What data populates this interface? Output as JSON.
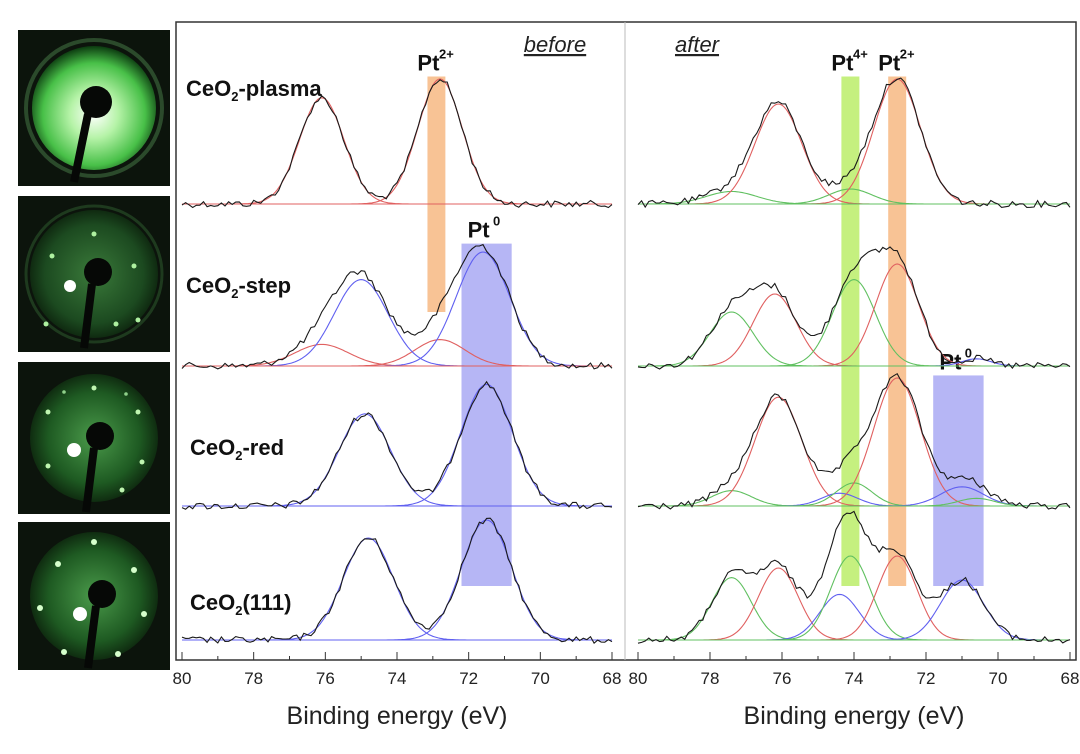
{
  "figure": {
    "leed_images": [
      {
        "id": "leed-plasma",
        "spots": "none"
      },
      {
        "id": "leed-step",
        "spots": "hexagonal"
      },
      {
        "id": "leed-red",
        "spots": "hexagonal-superstructure"
      },
      {
        "id": "leed-111",
        "spots": "hexagonal"
      }
    ]
  },
  "chart_data": {
    "type": "line",
    "subtype": "XPS Pt 4f stacked spectra",
    "xlabel": "Binding energy (eV)",
    "x_ticks": [
      "80",
      "78",
      "76",
      "74",
      "72",
      "70",
      "68"
    ],
    "xlim": [
      80,
      68
    ],
    "x_reversed": true,
    "samples": [
      "CeO2-plasma",
      "CeO2-step",
      "CeO2-red",
      "CeO2(111)"
    ],
    "sample_labels": [
      {
        "main": "CeO",
        "sub": "2",
        "rest": "-plasma"
      },
      {
        "main": "CeO",
        "sub": "2",
        "rest": "-step"
      },
      {
        "main": "CeO",
        "sub": "2",
        "rest": "-red"
      },
      {
        "main": "CeO",
        "sub": "2",
        "rest": "(111)"
      }
    ],
    "panels": [
      {
        "name": "before",
        "label": "before",
        "highlights": [
          {
            "label": "Pt",
            "sup": "2+",
            "center": 72.9,
            "width": 0.5,
            "color": "#f5a35c",
            "samples": [
              "CeO2-plasma",
              "CeO2-step"
            ]
          },
          {
            "label": "Pt",
            "sup": "0",
            "center": 71.5,
            "width": 1.4,
            "color": "#8f8ff0",
            "samples": [
              "CeO2-step",
              "CeO2-red",
              "CeO2(111)"
            ]
          }
        ],
        "spectra": {
          "CeO2-plasma": {
            "components": [
              {
                "center": 76.1,
                "height": 0.85,
                "sigma": 0.62,
                "color": "#e06060"
              },
              {
                "center": 72.8,
                "height": 1.0,
                "sigma": 0.62,
                "color": "#e06060"
              }
            ]
          },
          "CeO2-step": {
            "components": [
              {
                "center": 76.1,
                "height": 0.18,
                "sigma": 0.75,
                "color": "#e06060"
              },
              {
                "center": 72.8,
                "height": 0.22,
                "sigma": 0.7,
                "color": "#e06060"
              },
              {
                "center": 75.0,
                "height": 0.72,
                "sigma": 0.75,
                "color": "#6060f0"
              },
              {
                "center": 71.6,
                "height": 0.95,
                "sigma": 0.75,
                "color": "#6060f0"
              }
            ]
          },
          "CeO2-red": {
            "components": [
              {
                "center": 74.9,
                "height": 0.72,
                "sigma": 0.72,
                "color": "#6060f0"
              },
              {
                "center": 71.5,
                "height": 0.95,
                "sigma": 0.72,
                "color": "#6060f0"
              }
            ]
          },
          "CeO2(111)": {
            "components": [
              {
                "center": 74.8,
                "height": 0.85,
                "sigma": 0.7,
                "color": "#6060f0"
              },
              {
                "center": 71.5,
                "height": 1.0,
                "sigma": 0.7,
                "color": "#6060f0"
              }
            ]
          }
        }
      },
      {
        "name": "after",
        "label": "after",
        "highlights": [
          {
            "label": "Pt",
            "sup": "4+",
            "center": 74.1,
            "width": 0.5,
            "color": "#a6e83a",
            "samples": [
              "CeO2-plasma",
              "CeO2-step",
              "CeO2-red",
              "CeO2(111)"
            ]
          },
          {
            "label": "Pt",
            "sup": "2+",
            "center": 72.8,
            "width": 0.5,
            "color": "#f5a35c",
            "samples": [
              "CeO2-plasma",
              "CeO2-step",
              "CeO2-red",
              "CeO2(111)"
            ]
          },
          {
            "label": "Pt",
            "sup": "0",
            "center": 71.1,
            "width": 1.4,
            "color": "#8f8ff0",
            "samples": [
              "CeO2-red",
              "CeO2(111)"
            ]
          }
        ],
        "spectra": {
          "CeO2-plasma": {
            "components": [
              {
                "center": 77.4,
                "height": 0.1,
                "sigma": 0.7,
                "color": "#60c060"
              },
              {
                "center": 76.1,
                "height": 0.8,
                "sigma": 0.65,
                "color": "#e06060"
              },
              {
                "center": 74.1,
                "height": 0.12,
                "sigma": 0.6,
                "color": "#60c060"
              },
              {
                "center": 72.8,
                "height": 1.0,
                "sigma": 0.65,
                "color": "#e06060"
              }
            ]
          },
          "CeO2-step": {
            "components": [
              {
                "center": 77.4,
                "height": 0.45,
                "sigma": 0.6,
                "color": "#60c060"
              },
              {
                "center": 76.2,
                "height": 0.6,
                "sigma": 0.6,
                "color": "#e06060"
              },
              {
                "center": 74.0,
                "height": 0.72,
                "sigma": 0.6,
                "color": "#60c060"
              },
              {
                "center": 72.8,
                "height": 0.85,
                "sigma": 0.6,
                "color": "#e06060"
              },
              {
                "center": 70.6,
                "height": 0.06,
                "sigma": 0.4,
                "color": "#6060f0"
              }
            ]
          },
          "CeO2-red": {
            "components": [
              {
                "center": 77.4,
                "height": 0.12,
                "sigma": 0.55,
                "color": "#60c060"
              },
              {
                "center": 76.1,
                "height": 0.85,
                "sigma": 0.65,
                "color": "#e06060"
              },
              {
                "center": 74.4,
                "height": 0.1,
                "sigma": 0.5,
                "color": "#6060f0"
              },
              {
                "center": 74.0,
                "height": 0.18,
                "sigma": 0.5,
                "color": "#60c060"
              },
              {
                "center": 72.8,
                "height": 1.0,
                "sigma": 0.65,
                "color": "#e06060"
              },
              {
                "center": 71.0,
                "height": 0.15,
                "sigma": 0.6,
                "color": "#6060f0"
              },
              {
                "center": 70.6,
                "height": 0.06,
                "sigma": 0.5,
                "color": "#60c060"
              }
            ]
          },
          "CeO2(111)": {
            "components": [
              {
                "center": 77.4,
                "height": 0.52,
                "sigma": 0.55,
                "color": "#60c060"
              },
              {
                "center": 76.1,
                "height": 0.6,
                "sigma": 0.55,
                "color": "#e06060"
              },
              {
                "center": 74.4,
                "height": 0.38,
                "sigma": 0.55,
                "color": "#6060f0"
              },
              {
                "center": 74.1,
                "height": 0.7,
                "sigma": 0.55,
                "color": "#60c060"
              },
              {
                "center": 72.8,
                "height": 0.7,
                "sigma": 0.55,
                "color": "#e06060"
              },
              {
                "center": 71.0,
                "height": 0.5,
                "sigma": 0.6,
                "color": "#6060f0"
              }
            ]
          }
        }
      }
    ],
    "colors": {
      "raw": "#1a1a1a",
      "frame": "#333333",
      "axis_text": "#222222"
    }
  }
}
